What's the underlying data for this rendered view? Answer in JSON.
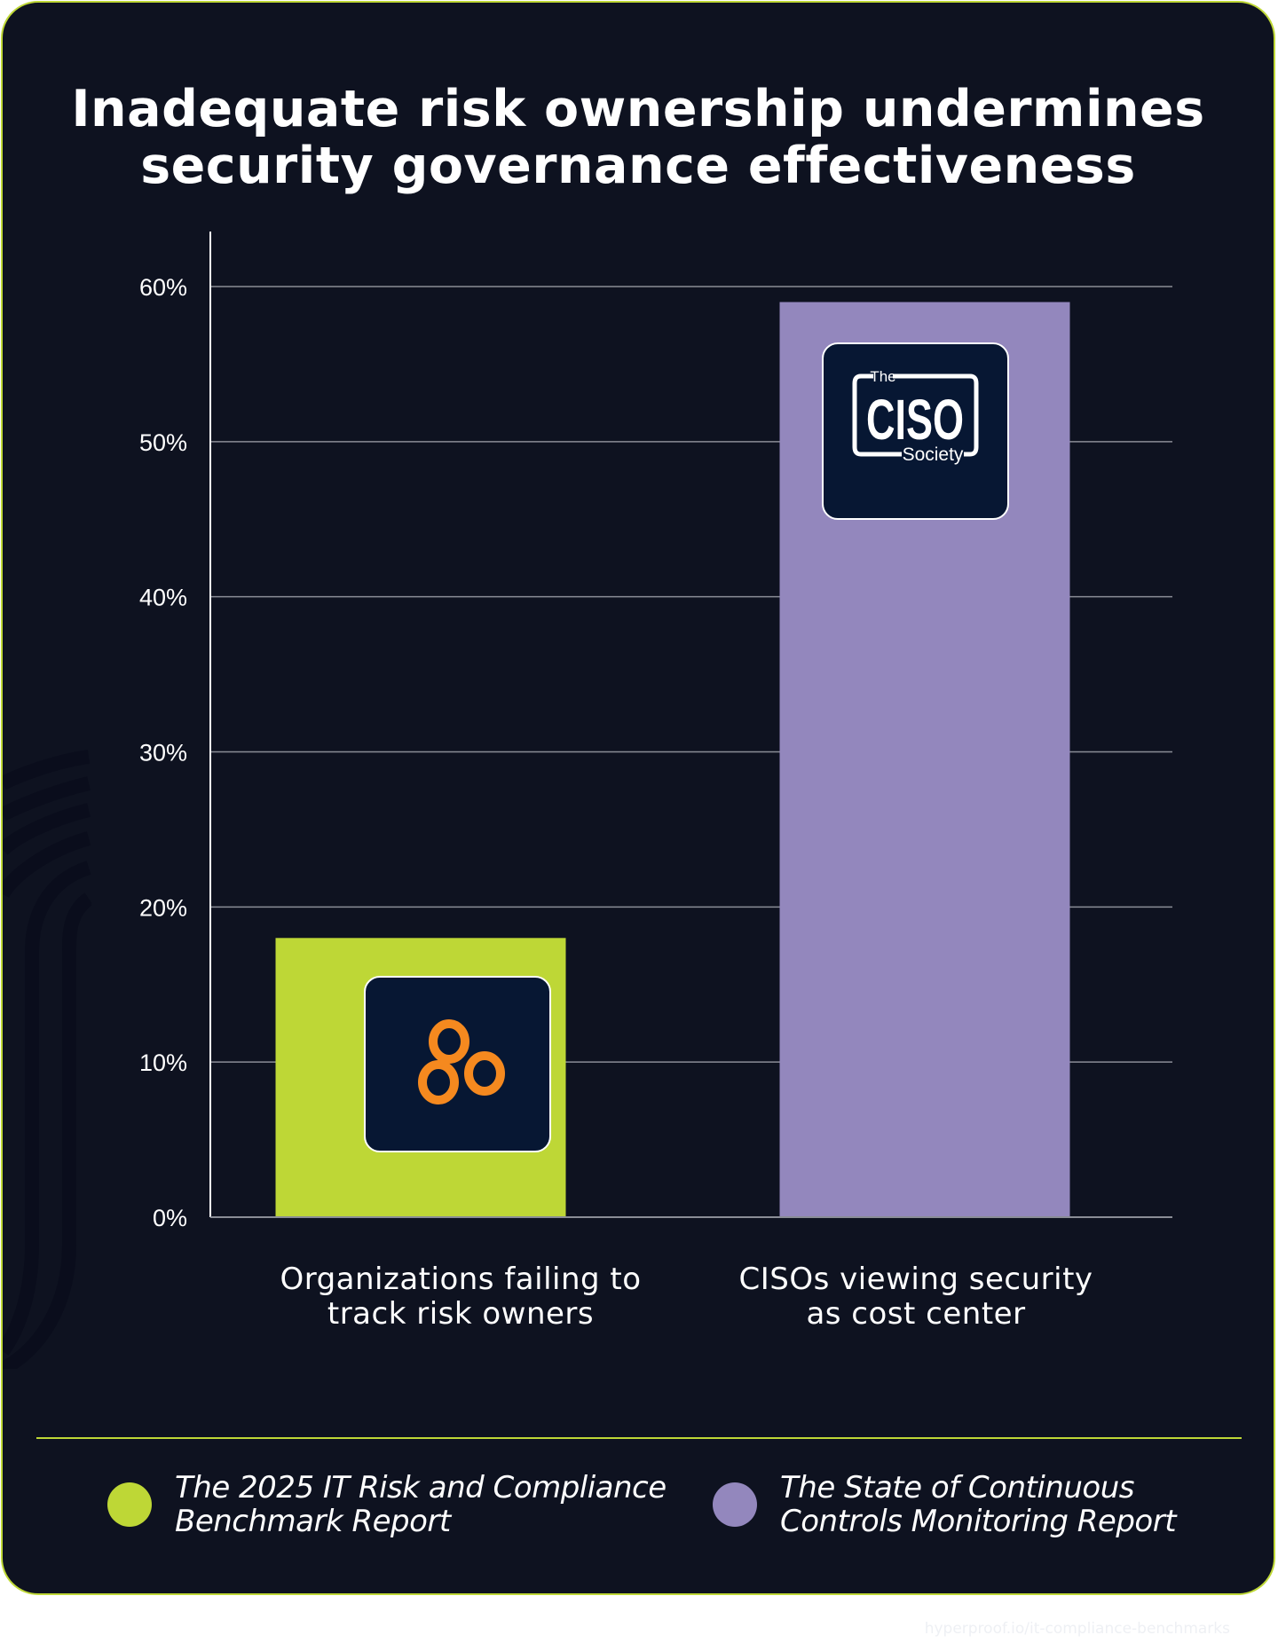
{
  "title": {
    "line1": "Inadequate risk ownership undermines",
    "line2": "security governance effectiveness"
  },
  "colors": {
    "background": "#0e1220",
    "accent_green": "#bed736",
    "accent_purple": "#9387bd",
    "logo_bg": "#071733",
    "hyperproof_orange": "#f5891f"
  },
  "chart_data": {
    "type": "bar",
    "title": "Inadequate risk ownership undermines security governance effectiveness",
    "categories": [
      "Organizations failing to track risk owners",
      "CISOs viewing security as cost center"
    ],
    "category_lines": [
      [
        "Organizations failing to",
        "track risk owners"
      ],
      [
        "CISOs viewing security",
        "as cost center"
      ]
    ],
    "values": [
      18,
      59
    ],
    "unit": "%",
    "bar_colors": [
      "#bed736",
      "#9387bd"
    ],
    "bar_logos": [
      "hyperproof-logo",
      "ciso-society-logo"
    ],
    "ylim": [
      0,
      60
    ],
    "yticks": [
      0,
      10,
      20,
      30,
      40,
      50,
      60
    ],
    "ytick_labels": [
      "0%",
      "10%",
      "20%",
      "30%",
      "40%",
      "50%",
      "60%"
    ],
    "xlabel": "",
    "ylabel": "",
    "grid": true,
    "legend_position": "bottom",
    "legend": [
      {
        "lines": [
          "The 2025 IT Risk and Compliance",
          "Benchmark Report"
        ],
        "color": "#bed736"
      },
      {
        "lines": [
          "The State of Continuous",
          "Controls Monitoring Report"
        ],
        "color": "#9387bd"
      }
    ]
  },
  "logos": {
    "ciso": {
      "top": "The",
      "main": "CISO",
      "bottom": "Society"
    }
  },
  "footer": {
    "url": "hyperproof.io/it-compliance-benchmarks"
  }
}
